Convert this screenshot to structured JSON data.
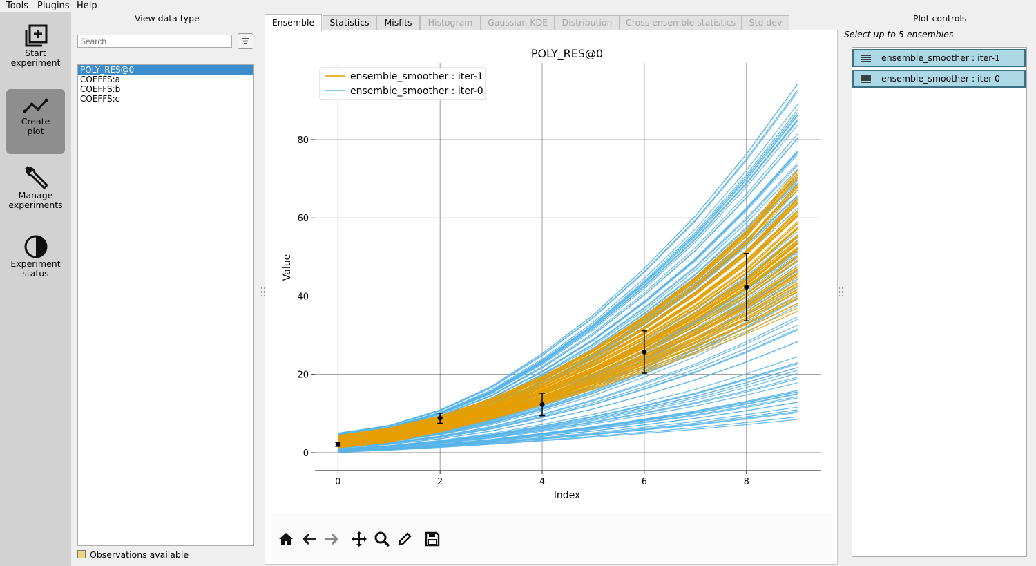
{
  "menu": [
    "Tools",
    "Plugins",
    "Help"
  ],
  "sidebar": [
    {
      "label1": "Start",
      "label2": "experiment"
    },
    {
      "label1": "Create",
      "label2": "plot"
    },
    {
      "label1": "Manage",
      "label2": "experiments"
    },
    {
      "label1": "Experiment",
      "label2": "status"
    }
  ],
  "data_panel": {
    "title": "View data type",
    "search_placeholder": "Search",
    "items": [
      "POLY_RES@0",
      "COEFFS:a",
      "COEFFS:b",
      "COEFFS:c"
    ],
    "observations_label": "Observations available"
  },
  "tabs": [
    "Ensemble",
    "Statistics",
    "Misfits",
    "Histogram",
    "Gaussian KDE",
    "Distribution",
    "Cross ensemble statistics",
    "Std dev"
  ],
  "plot_controls": {
    "title": "Plot controls",
    "subtitle": "Select up to 5 ensembles",
    "ensembles": [
      "ensemble_smoother : iter-1",
      "ensemble_smoother : iter-0"
    ]
  },
  "colors": {
    "iter1": "#e69f00",
    "iter0": "#56b4e9",
    "selection": "#3a8ccd",
    "ensemble_item": "#add8e6"
  },
  "chart_data": {
    "type": "line",
    "title": "POLY_RES@0",
    "xlabel": "Index",
    "ylabel": "Value",
    "xlim": [
      -0.45,
      9.45
    ],
    "ylim": [
      -4.6,
      99.6
    ],
    "xticks": [
      0,
      2,
      4,
      6,
      8
    ],
    "yticks": [
      0,
      20,
      40,
      60,
      80
    ],
    "grid": true,
    "legend_position": "top-left",
    "series": [
      {
        "name": "ensemble_smoother : iter-1",
        "color": "#e69f00",
        "x": [
          0,
          1,
          2,
          3,
          4,
          5,
          6,
          7,
          8,
          9
        ],
        "upper": [
          4.4,
          6.3,
          9.4,
          13.8,
          19.5,
          26.5,
          35,
          45,
          57,
          72.5
        ],
        "lower": [
          0.6,
          1.9,
          4.5,
          7.5,
          10.8,
          14.2,
          17.8,
          21.5,
          25.3,
          29.2
        ],
        "members": 100
      },
      {
        "name": "ensemble_smoother : iter-0",
        "color": "#56b4e9",
        "x": [
          0,
          1,
          2,
          3,
          4,
          5,
          6,
          7,
          8,
          9
        ],
        "upper": [
          5.0,
          7.0,
          11.0,
          17.0,
          25.5,
          35.5,
          47.5,
          61,
          77,
          95
        ],
        "lower": [
          0.1,
          0.6,
          1.3,
          2.1,
          3.0,
          3.9,
          4.9,
          5.9,
          7.1,
          8.4
        ],
        "members": 100
      }
    ],
    "observations": [
      {
        "x": 0,
        "y": 2.1,
        "err": 0.5
      },
      {
        "x": 2,
        "y": 8.8,
        "err": 1.3
      },
      {
        "x": 4,
        "y": 12.3,
        "err": 2.9
      },
      {
        "x": 6,
        "y": 25.7,
        "err": 5.4
      },
      {
        "x": 8,
        "y": 42.3,
        "err": 8.6
      }
    ]
  }
}
